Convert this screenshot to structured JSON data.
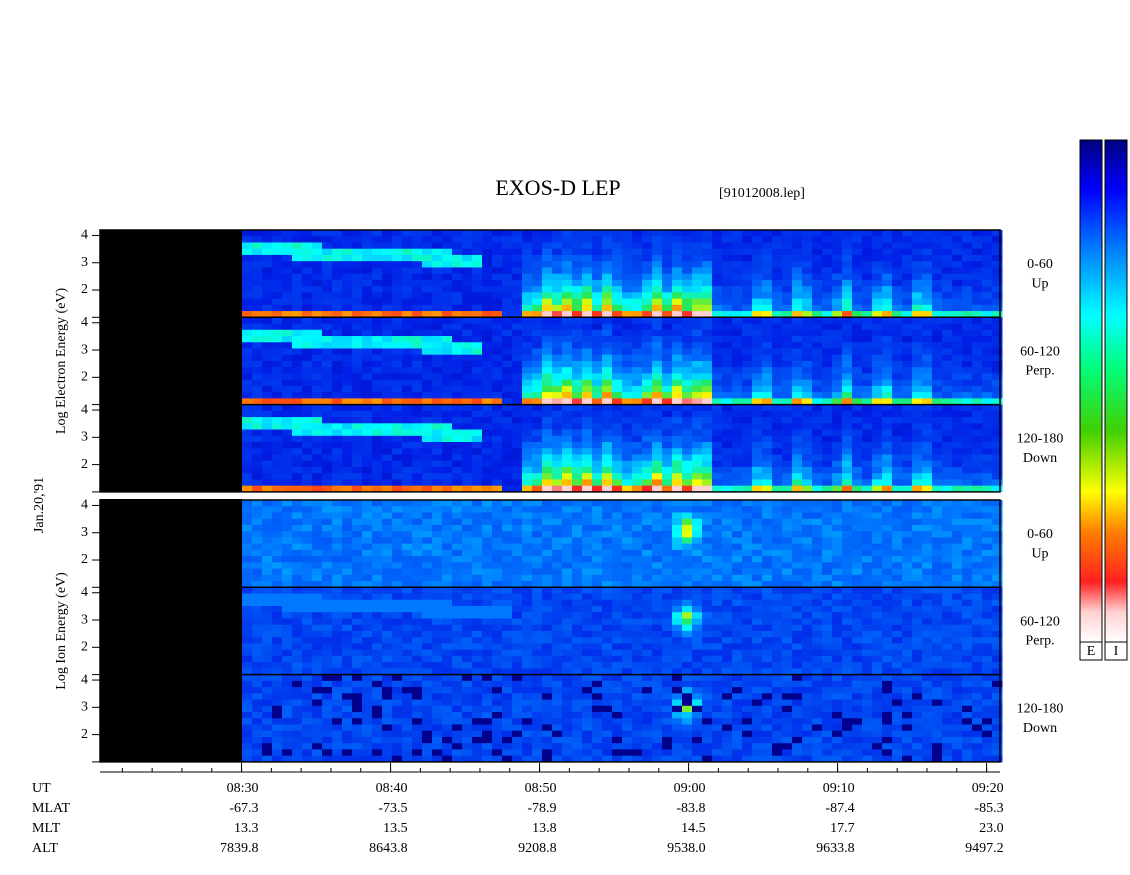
{
  "chart_data": {
    "type": "spectrogram",
    "title": "EXOS-D LEP",
    "subtitle": "[91012008.lep]",
    "date_label": "Jan.20,'91",
    "ylim": [
      1,
      4.2
    ],
    "yticks": [
      2,
      3,
      4
    ],
    "xlim": [
      500.5,
      560.9
    ],
    "xticks": [
      {
        "value": 510,
        "label": "08:30"
      },
      {
        "value": 520,
        "label": "08:40"
      },
      {
        "value": 530,
        "label": "08:50"
      },
      {
        "value": 540,
        "label": "09:00"
      },
      {
        "value": 550,
        "label": "09:10"
      },
      {
        "value": 560,
        "label": "09:20"
      }
    ],
    "groups": [
      {
        "ylabel": "Log  Electron  Energy (eV)",
        "panels": [
          {
            "pitch": "0-60",
            "direction": "Up"
          },
          {
            "pitch": "60-120",
            "direction": "Perp."
          },
          {
            "pitch": "120-180",
            "direction": "Down"
          }
        ]
      },
      {
        "ylabel": "Log  Ion  Energy (eV)",
        "panels": [
          {
            "pitch": "0-60",
            "direction": "Up"
          },
          {
            "pitch": "60-120",
            "direction": "Perp."
          },
          {
            "pitch": "120-180",
            "direction": "Down"
          }
        ]
      }
    ],
    "ephemeris": {
      "x_label": "UT",
      "row_labels": [
        "MLAT",
        "MLT",
        "ALT"
      ],
      "rows": [
        [
          "-67.3",
          "-73.5",
          "-78.9",
          "-83.8",
          "-87.4",
          "-85.3"
        ],
        [
          "13.3",
          "13.5",
          "13.8",
          "14.5",
          "17.7",
          "23.0"
        ],
        [
          "7839.8",
          "8643.8",
          "9208.8",
          "9538.0",
          "9633.8",
          "9497.2"
        ]
      ]
    },
    "colorbar_labels": [
      "E",
      "I"
    ]
  }
}
